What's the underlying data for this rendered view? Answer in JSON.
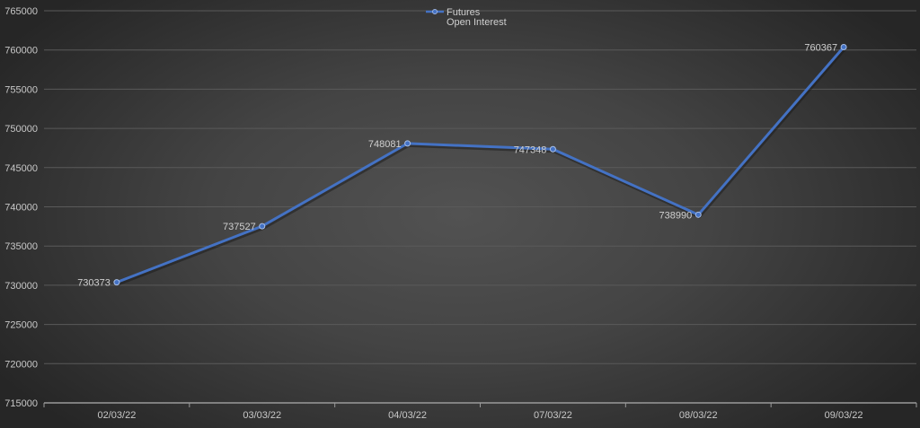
{
  "chart_data": {
    "type": "line",
    "title": "",
    "xlabel": "",
    "ylabel": "",
    "categories": [
      "02/03/22",
      "03/03/22",
      "04/03/22",
      "07/03/22",
      "08/03/22",
      "09/03/22"
    ],
    "series": [
      {
        "name": "Futures Open Interest",
        "values": [
          730373,
          737527,
          748081,
          747348,
          738990,
          760367
        ],
        "color": "#4472c4"
      }
    ],
    "data_labels": [
      "730373",
      "737527",
      "748081",
      "747348",
      "738990",
      "760367"
    ],
    "ylim": [
      715000,
      765000
    ],
    "y_ticks": [
      765000,
      760000,
      755000,
      750000,
      745000,
      740000,
      735000,
      730000,
      725000,
      720000,
      715000
    ],
    "y_tick_labels": [
      "765000",
      "760000",
      "755000",
      "750000",
      "745000",
      "740000",
      "735000",
      "730000",
      "725000",
      "720000",
      "715000"
    ],
    "grid": true,
    "legend_position": "top"
  },
  "legend": {
    "line1": "Futures",
    "line2": "Open Interest"
  },
  "colors": {
    "series": "#4472c4",
    "grid": "#5a5a5a",
    "axis": "#9a9a9a",
    "text": "#c8c8c8"
  }
}
